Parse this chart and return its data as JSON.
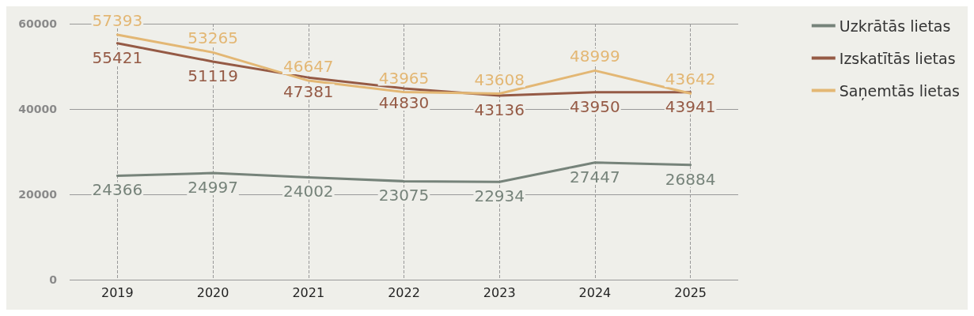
{
  "chart_data": {
    "type": "line",
    "categories": [
      "2019",
      "2020",
      "2021",
      "2022",
      "2023",
      "2024",
      "2025"
    ],
    "series": [
      {
        "name": "Uzkrātās lietas",
        "color": "#76837a",
        "values": [
          24366,
          24997,
          24002,
          23075,
          22934,
          27447,
          26884
        ]
      },
      {
        "name": "Izskatītās lietas",
        "color": "#955a45",
        "values": [
          55421,
          51119,
          47381,
          44830,
          43136,
          43950,
          43941
        ]
      },
      {
        "name": "Saņemtās lietas",
        "color": "#e3b774",
        "values": [
          57393,
          53265,
          46647,
          43965,
          43608,
          48999,
          43642
        ]
      }
    ],
    "ylim": [
      0,
      60000
    ],
    "yticks": [
      0,
      20000,
      40000,
      60000
    ],
    "grid": true,
    "legend": "top right",
    "data_labels": true,
    "marker": "none",
    "line_style": "solid"
  }
}
